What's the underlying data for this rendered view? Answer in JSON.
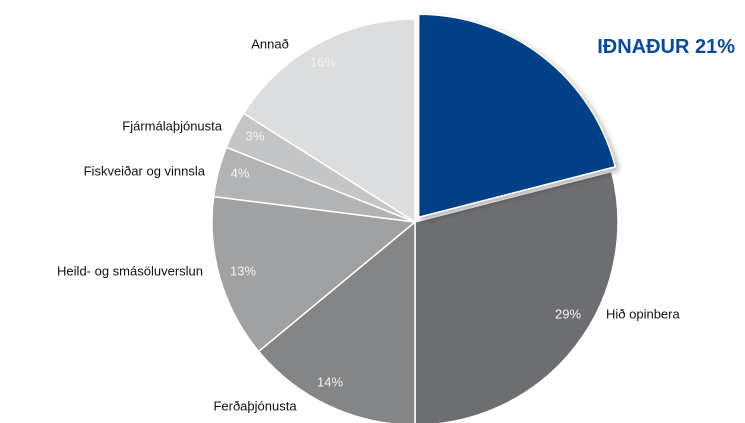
{
  "chart_data": {
    "type": "pie",
    "categories": [
      "IÐNAÐUR",
      "Hið opinbera",
      "Ferðaþjónusta",
      "Heild- og smásöluverslun",
      "Fiskveiðar og vinnsla",
      "Fjármálaþjónusta",
      "Annað"
    ],
    "values": [
      21,
      29,
      14,
      13,
      4,
      3,
      16
    ],
    "value_labels": [
      "21%",
      "29%",
      "14%",
      "13%",
      "4%",
      "3%",
      "16%"
    ],
    "colors": [
      "#003f87",
      "#6d6e71",
      "#848587",
      "#a0a1a3",
      "#b2b3b5",
      "#c4c5c7",
      "#dcdddf"
    ]
  }
}
